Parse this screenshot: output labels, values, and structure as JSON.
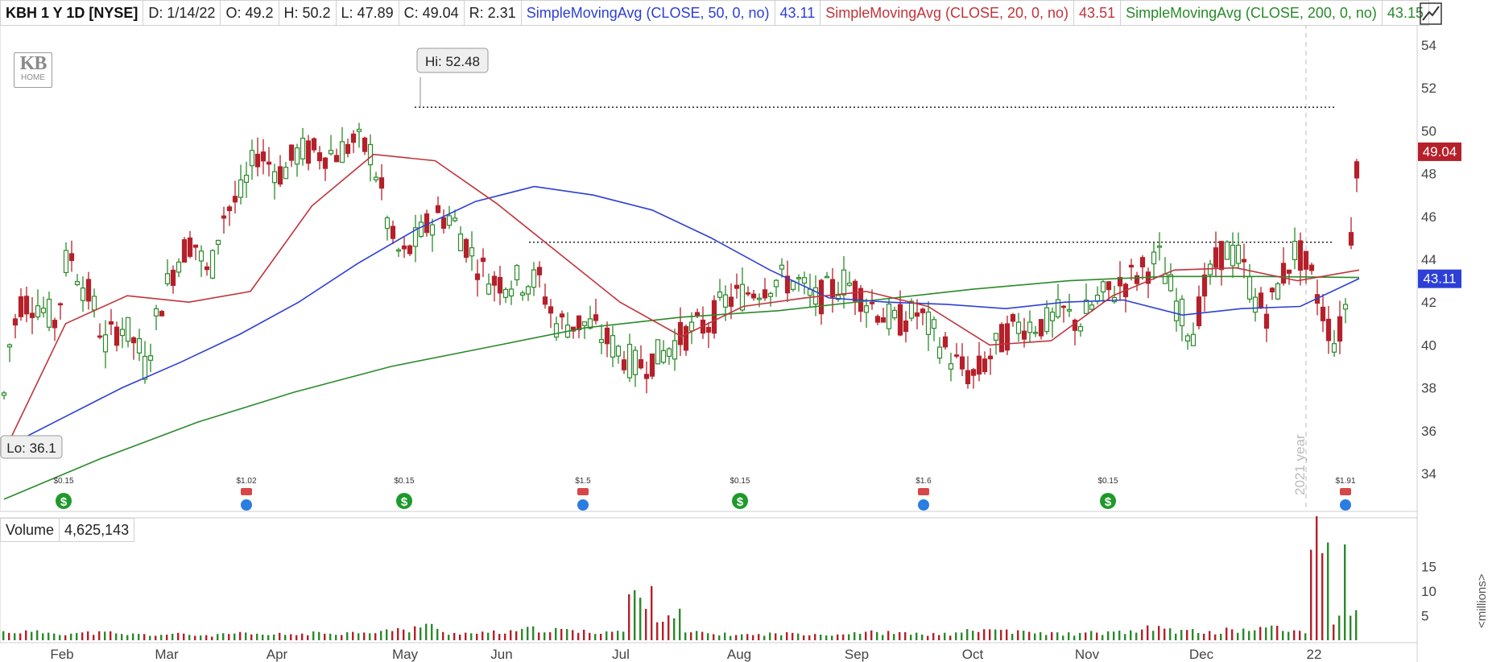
{
  "legend": {
    "symbol": "KBH 1 Y 1D [NYSE]",
    "date": "D: 1/14/22",
    "open": "O: 49.2",
    "high": "H: 50.2",
    "low": "L: 47.89",
    "close": "C: 49.04",
    "range": "R: 2.31",
    "sma50_label": "SimpleMovingAvg (CLOSE, 50, 0, no)",
    "sma50_value": "43.11",
    "sma20_label": "SimpleMovingAvg (CLOSE, 20, 0, no)",
    "sma20_value": "43.51",
    "sma200_label": "SimpleMovingAvg (CLOSE, 200, 0, no)",
    "sma200_value": "43.15"
  },
  "logo": {
    "text": "KB",
    "sub": "HOME"
  },
  "volume_legend": {
    "label": "Volume",
    "value": "4,625,143"
  },
  "colors": {
    "up": "#2a8a2a",
    "down": "#b5202a",
    "sma50": "#2d3fd6",
    "sma20": "#c0343a",
    "sma200": "#2a8a2a",
    "grid": "#e8e8e8"
  },
  "chart_data": [
    {
      "type": "candlestick",
      "title": "KBH 1 Y 1D [NYSE]",
      "ylim": [
        32.5,
        55
      ],
      "y_ticks": [
        34,
        36,
        38,
        40,
        42,
        44,
        46,
        48,
        50,
        52,
        54
      ],
      "x_tick_labels": [
        "Feb",
        "Mar",
        "Apr",
        "May",
        "Jun",
        "Jul",
        "Aug",
        "Sep",
        "Oct",
        "Nov",
        "Dec",
        "22"
      ],
      "grid": false,
      "annotations": {
        "high_label": "Hi: 52.48",
        "low_label": "Lo: 36.1",
        "year_marker": "2021 year",
        "last_price": "49.04",
        "sma50_last": "43.11",
        "resistance_levels": [
          51.1,
          44.8
        ]
      },
      "dividends": [
        {
          "label": "$0.15",
          "type": "dividend"
        },
        {
          "label": "$1.02",
          "type": "earnings"
        },
        {
          "label": "$0.15",
          "type": "dividend"
        },
        {
          "label": "$1.5",
          "type": "earnings"
        },
        {
          "label": "$0.15",
          "type": "dividend"
        },
        {
          "label": "$1.6",
          "type": "earnings"
        },
        {
          "label": "$0.15",
          "type": "dividend"
        },
        {
          "label": "$1.91",
          "type": "earnings"
        }
      ],
      "series": [
        {
          "name": "SimpleMovingAvg (CLOSE, 50, 0, no)",
          "values": [
            35.2,
            36.6,
            38.0,
            39.2,
            40.5,
            42.0,
            43.8,
            45.4,
            46.7,
            47.4,
            47.0,
            46.3,
            45.0,
            43.5,
            42.2,
            42.0,
            41.9,
            41.7,
            42.0,
            42.1,
            41.4,
            41.7,
            41.8,
            43.1
          ]
        },
        {
          "name": "SimpleMovingAvg (CLOSE, 20, 0, no)",
          "values": [
            35.0,
            41.0,
            42.3,
            42.0,
            42.5,
            46.5,
            48.9,
            48.6,
            46.6,
            44.3,
            42.0,
            40.4,
            41.8,
            42.2,
            42.5,
            41.8,
            40.0,
            40.2,
            42.3,
            43.5,
            43.6,
            43.0,
            43.5
          ]
        },
        {
          "name": "SimpleMovingAvg (CLOSE, 200, 0, no)",
          "values": [
            32.8,
            34.7,
            36.4,
            37.8,
            39.0,
            39.9,
            40.8,
            41.3,
            41.6,
            42.1,
            42.6,
            43.0,
            43.2,
            43.2,
            43.15
          ]
        }
      ]
    },
    {
      "type": "bar",
      "title": "Volume",
      "ylabel": "<millions>",
      "y_ticks": [
        5,
        10,
        15
      ],
      "ylim": [
        0,
        20
      ],
      "values": [
        1.7,
        1.6,
        1.4,
        1.5,
        1.2,
        1.1,
        1.2,
        1.0,
        1.3,
        1.1,
        1.2,
        1.4,
        1.5,
        1.8,
        2.0,
        2.8,
        1.5,
        1.4,
        1.6,
        2.2,
        2.0,
        1.7,
        1.8,
        8.6,
        5.2,
        1.5,
        1.2,
        1.1,
        1.3,
        1.4,
        1.2,
        1.6,
        1.5,
        1.3,
        1.2,
        1.8,
        2.1,
        1.6,
        1.4,
        1.3,
        1.5,
        1.7,
        2.4,
        1.8,
        1.6,
        2.0,
        2.5,
        1.9,
        19.5,
        5.0
      ]
    }
  ]
}
